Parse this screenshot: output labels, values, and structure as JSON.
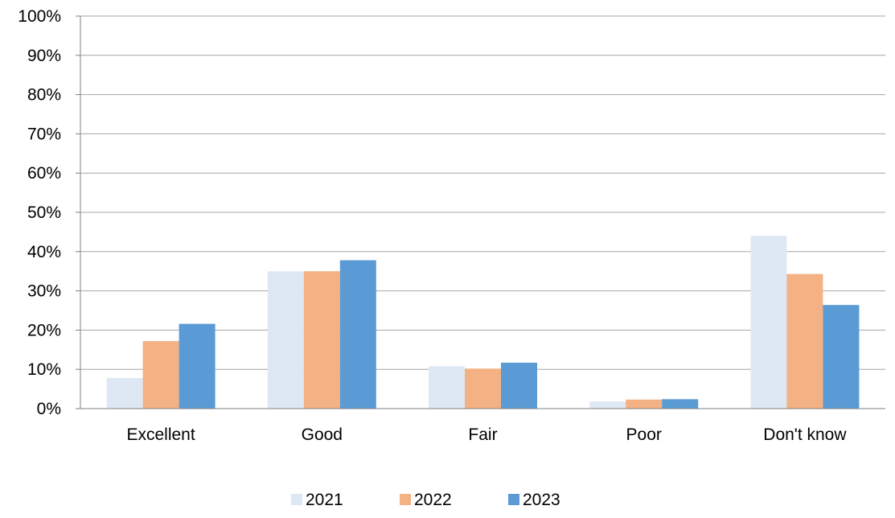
{
  "chart_data": {
    "type": "bar",
    "title": "",
    "xlabel": "",
    "ylabel": "",
    "categories": [
      "Excellent",
      "Good",
      "Fair",
      "Poor",
      "Don't know"
    ],
    "series": [
      {
        "name": "2021",
        "color": "#dee8f4",
        "values": [
          7.8,
          35.0,
          10.8,
          1.8,
          44.0
        ]
      },
      {
        "name": "2022",
        "color": "#f4b183",
        "values": [
          17.2,
          35.0,
          10.2,
          2.3,
          34.3
        ]
      },
      {
        "name": "2023",
        "color": "#5b9bd5",
        "values": [
          21.6,
          37.8,
          11.7,
          2.4,
          26.4
        ]
      }
    ],
    "ylim": [
      0,
      100
    ],
    "yticks": [
      "0%",
      "10%",
      "20%",
      "30%",
      "40%",
      "50%",
      "60%",
      "70%",
      "80%",
      "90%",
      "100%"
    ],
    "grid": true,
    "legend_position": "bottom"
  }
}
